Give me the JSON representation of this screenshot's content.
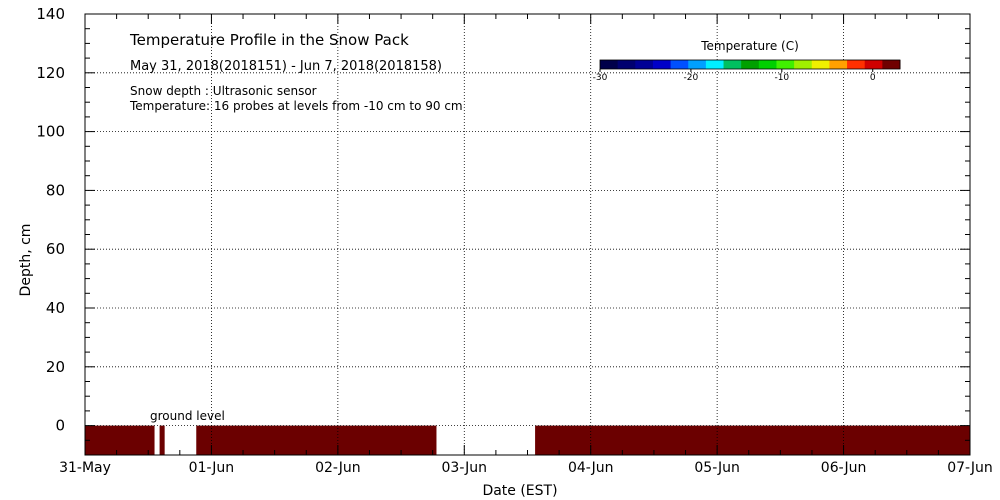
{
  "chart_data": {
    "type": "heatmap",
    "title": "Temperature Profile in the Snow Pack",
    "subtitle": "May 31, 2018(2018151) - Jun  7, 2018(2018158)",
    "notes": [
      "Snow depth : Ultrasonic sensor",
      "Temperature: 16 probes at levels from -10 cm to 90 cm"
    ],
    "xlabel": "Date (EST)",
    "ylabel": "Depth, cm",
    "x_ticks": [
      "31-May",
      "01-Jun",
      "02-Jun",
      "03-Jun",
      "04-Jun",
      "05-Jun",
      "06-Jun",
      "07-Jun"
    ],
    "xlim": [
      0,
      7
    ],
    "ylim": [
      -10,
      140
    ],
    "y_ticks": [
      0,
      20,
      40,
      60,
      80,
      100,
      120,
      140
    ],
    "grid": true,
    "annotation": "ground level",
    "colorbar": {
      "title": "Temperature (C)",
      "range": [
        -30,
        3
      ],
      "ticks": [
        -30,
        -20,
        -10,
        0
      ],
      "colors": [
        "#00004a",
        "#000070",
        "#000096",
        "#0000c8",
        "#0050ff",
        "#00a0ff",
        "#00f0ff",
        "#00c060",
        "#00a000",
        "#00d000",
        "#40f000",
        "#a0f000",
        "#f0f000",
        "#ffa000",
        "#ff3000",
        "#d00000",
        "#700000"
      ]
    },
    "series": [
      {
        "segments": [
          {
            "start": 0,
            "end": 0.55,
            "color": "#6b0000"
          },
          {
            "start": 0.59,
            "end": 0.63,
            "color": "#6b0000"
          },
          {
            "start": 0.88,
            "end": 2.78,
            "color": "#6b0000"
          },
          {
            "start": 3.56,
            "end": 7.0,
            "color": "#6b0000"
          }
        ],
        "depth_range": [
          -10,
          0
        ]
      }
    ]
  }
}
